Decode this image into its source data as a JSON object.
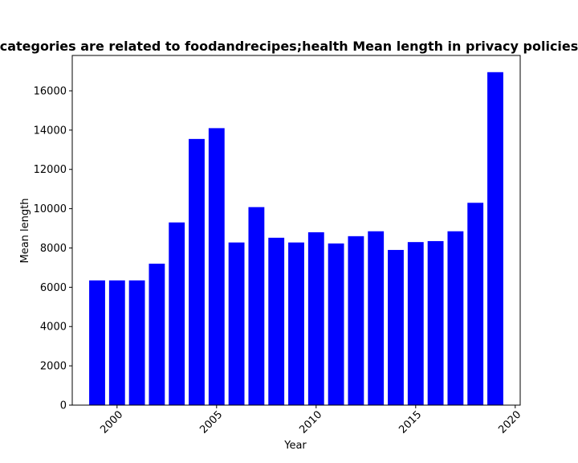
{
  "chart_data": {
    "type": "bar",
    "title": "categories are related to foodandrecipes;health Mean length in privacy policies",
    "xlabel": "Year",
    "ylabel": "Mean length",
    "x": [
      1999,
      2000,
      2001,
      2002,
      2003,
      2004,
      2005,
      2006,
      2007,
      2008,
      2009,
      2010,
      2011,
      2012,
      2013,
      2014,
      2015,
      2016,
      2017,
      2018,
      2019
    ],
    "values": [
      6350,
      6350,
      6350,
      7200,
      9300,
      13550,
      14100,
      8280,
      10080,
      8520,
      8280,
      8800,
      8230,
      8600,
      8850,
      7900,
      8300,
      8350,
      8850,
      10300,
      16950
    ],
    "xlim": [
      1997.75,
      2020.25
    ],
    "ylim": [
      0,
      17800
    ],
    "xticks": [
      "2000",
      "2005",
      "2010",
      "2015",
      "2020"
    ],
    "yticks": [
      "0",
      "2000",
      "4000",
      "6000",
      "8000",
      "10000",
      "12000",
      "14000",
      "16000"
    ],
    "grid": false,
    "bar_color": "#0000ff"
  }
}
